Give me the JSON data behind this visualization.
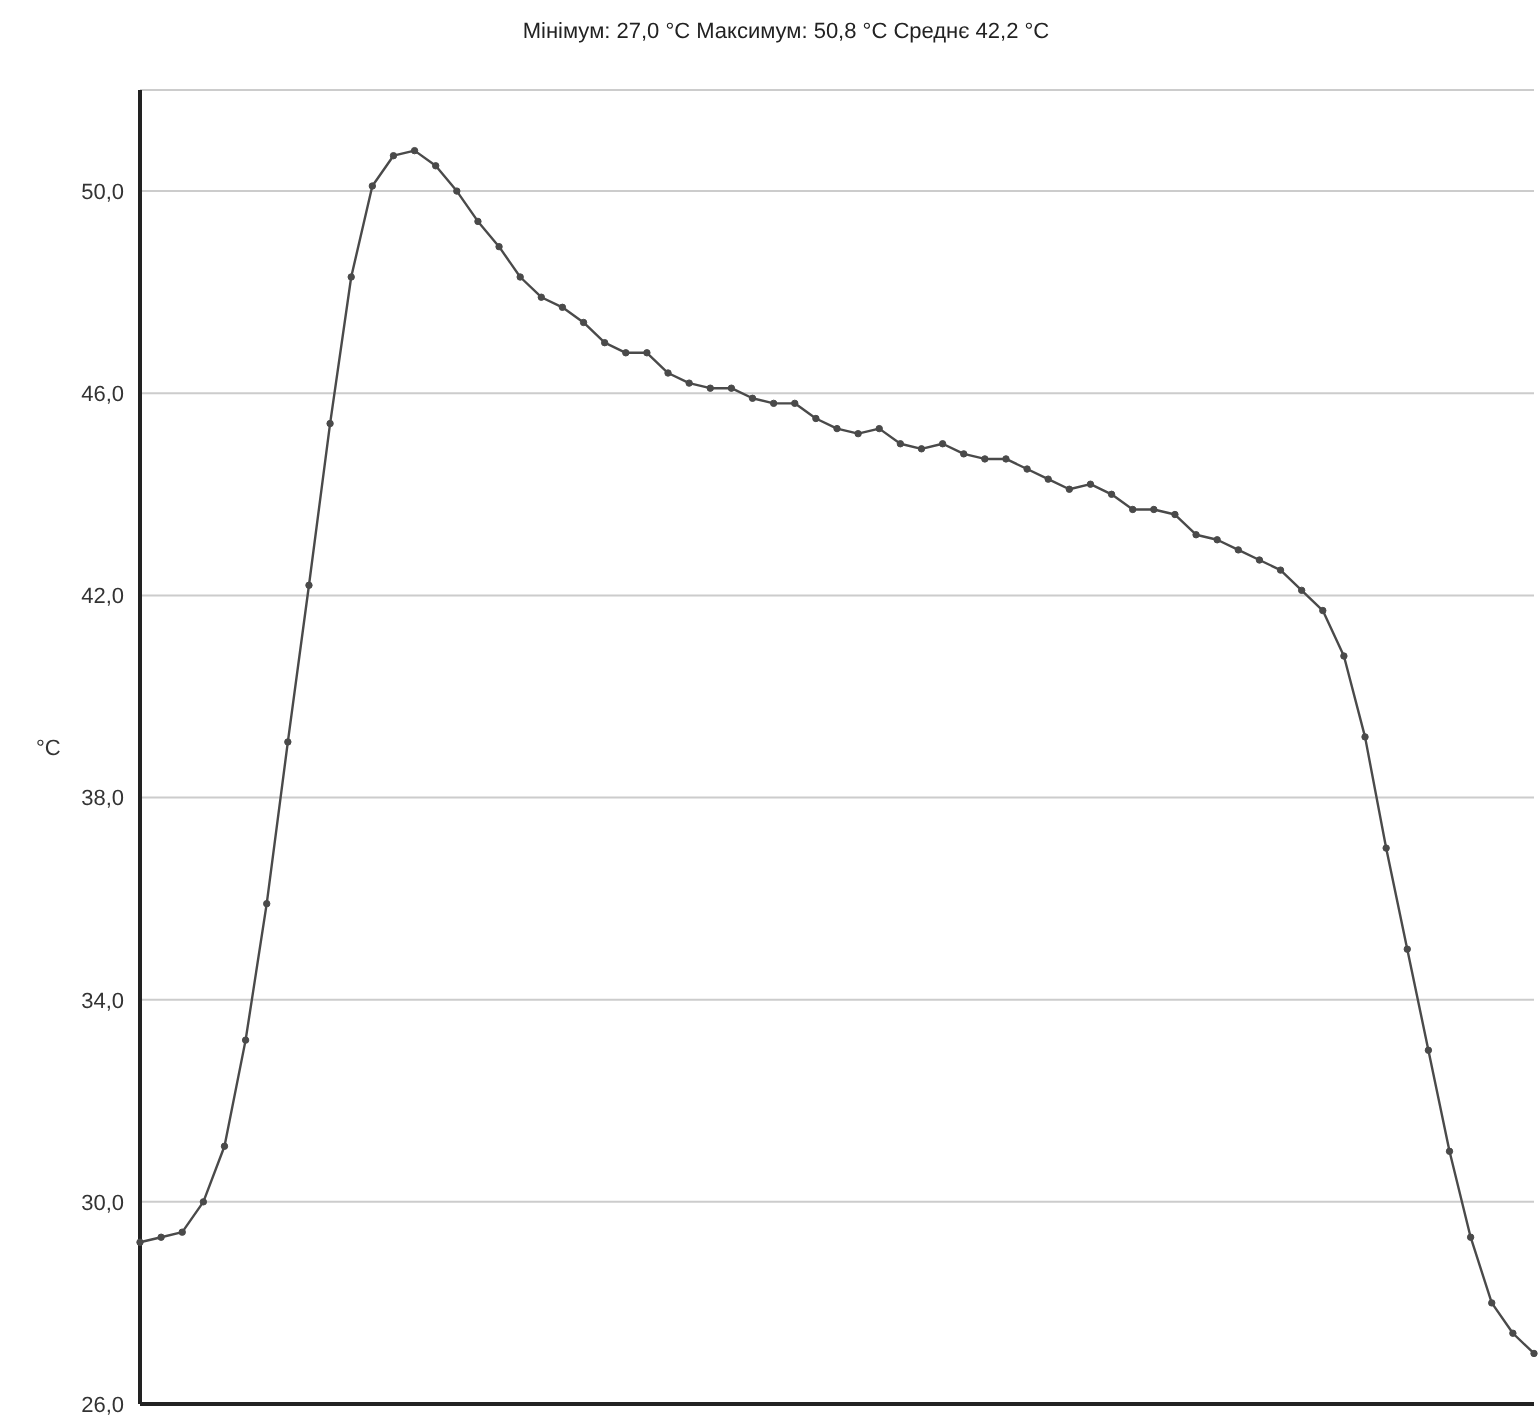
{
  "chart_data": {
    "type": "line",
    "title": "Мінімум:  27,0  °C Максимум:  50,8  °C Среднє   42,2  °C",
    "ylabel": "°C",
    "categories": [
      null,
      null,
      null,
      null,
      null,
      null,
      null,
      null,
      null,
      null,
      null,
      null,
      null,
      null,
      null,
      null,
      null,
      null,
      null,
      null,
      null,
      null,
      null,
      null,
      null,
      null,
      null,
      null,
      null,
      null,
      null,
      null,
      null,
      null,
      null,
      null,
      null,
      null,
      null,
      null,
      null,
      null,
      null,
      null,
      null,
      null,
      null,
      null,
      null,
      null,
      null,
      null,
      null,
      null,
      null,
      null,
      null,
      null,
      null,
      null,
      null,
      null,
      null,
      null,
      null,
      null,
      null
    ],
    "series": [
      {
        "color": "#4a4a4a",
        "values": [
          29.2,
          29.3,
          29.4,
          30.0,
          31.1,
          33.2,
          35.9,
          39.1,
          42.2,
          45.4,
          48.3,
          50.1,
          50.7,
          50.8,
          50.5,
          50.0,
          49.4,
          48.9,
          48.3,
          47.9,
          47.7,
          47.4,
          47.0,
          46.8,
          46.8,
          46.4,
          46.2,
          46.1,
          46.1,
          45.9,
          45.8,
          45.8,
          45.5,
          45.3,
          45.2,
          45.3,
          45.0,
          44.9,
          45.0,
          44.8,
          44.7,
          44.7,
          44.5,
          44.3,
          44.1,
          44.2,
          44.0,
          43.7,
          43.7,
          43.6,
          43.2,
          43.1,
          42.9,
          42.7,
          42.5,
          42.1,
          41.7,
          40.8,
          39.2,
          37.0,
          35.0,
          33.0,
          31.0,
          29.3,
          28.0,
          27.4,
          27.0
        ]
      }
    ],
    "ylim": [
      26,
      52
    ],
    "yticks": [
      {
        "value": 26,
        "label": "26,0"
      },
      {
        "value": 30,
        "label": "30,0"
      },
      {
        "value": 34,
        "label": "34,0"
      },
      {
        "value": 38,
        "label": "38,0"
      },
      {
        "value": 42,
        "label": "42,0"
      },
      {
        "value": 46,
        "label": "46,0"
      },
      {
        "value": 50,
        "label": "50,0"
      }
    ],
    "grid": "y",
    "marker": "circle",
    "line_style": "solid",
    "tick_labels": "y",
    "legend": false
  }
}
